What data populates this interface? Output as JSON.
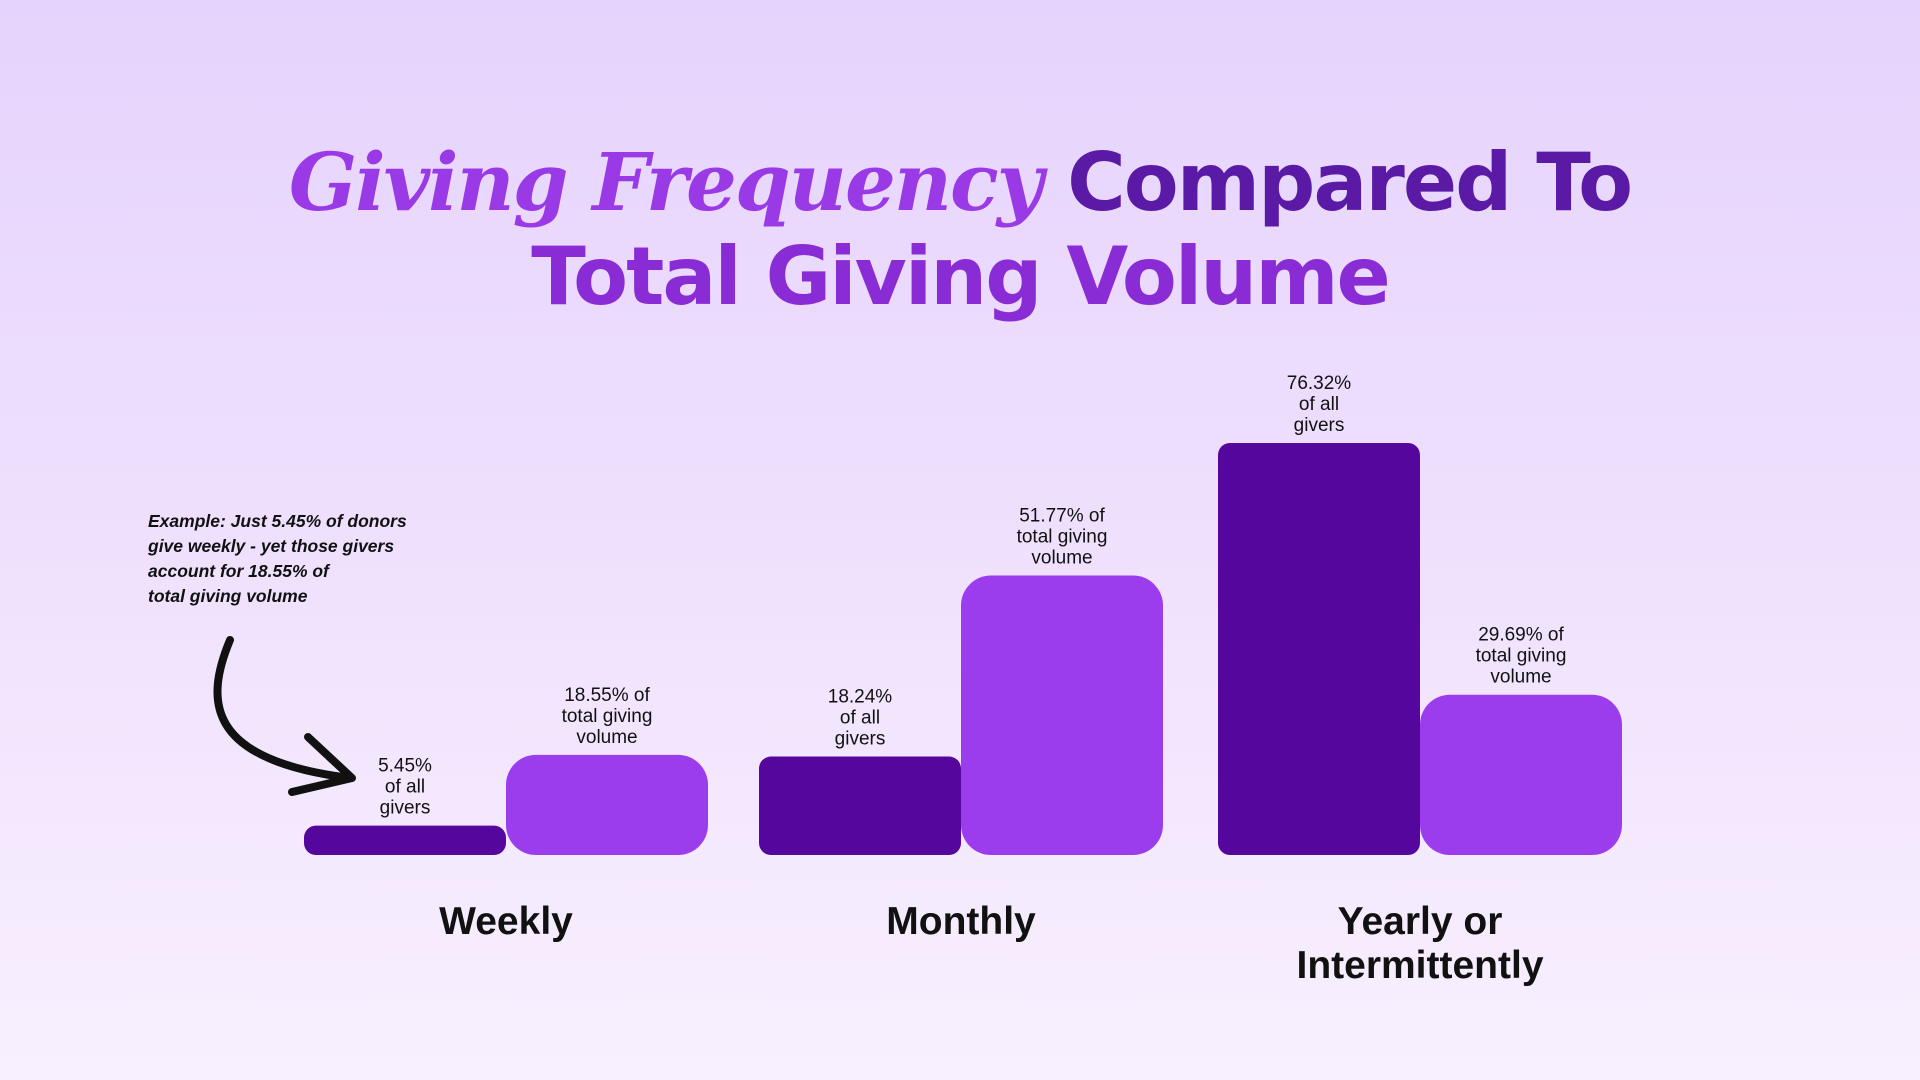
{
  "title": {
    "line1_italic": "Giving Frequency",
    "line1_rest": "Compared To",
    "line2": "Total Giving Volume"
  },
  "annotation": {
    "lines": [
      "Example: Just 5.45% of donors",
      "give weekly - yet those givers",
      "account for 18.55% of",
      "total giving volume"
    ]
  },
  "colors": {
    "givers_bar": "#55069c",
    "volume_bar": "#9b3ded",
    "title_italic": "#9a3ae6",
    "title_dark": "#5a1aa6",
    "title_line2": "#8a2cd6",
    "text": "#111111"
  },
  "chart_data": {
    "type": "bar",
    "title": "Giving Frequency Compared To Total Giving Volume",
    "xlabel": "",
    "ylabel": "",
    "ylim": [
      0,
      100
    ],
    "grid": false,
    "categories": [
      {
        "id": "weekly",
        "label_lines": [
          "Weekly"
        ]
      },
      {
        "id": "monthly",
        "label_lines": [
          "Monthly"
        ]
      },
      {
        "id": "yearly",
        "label_lines": [
          "Yearly or",
          "Intermittently"
        ]
      }
    ],
    "series": [
      {
        "name": "givers",
        "values": [
          5.45,
          18.24,
          76.32
        ],
        "labels": [
          [
            "5.45%",
            "of all",
            "givers"
          ],
          [
            "18.24%",
            "of all",
            "givers"
          ],
          [
            "76.32%",
            "of all",
            "givers"
          ]
        ]
      },
      {
        "name": "total giving volume",
        "values": [
          18.55,
          51.77,
          29.69
        ],
        "labels": [
          [
            "18.55% of",
            "total giving",
            "volume"
          ],
          [
            "51.77% of",
            "total giving",
            "volume"
          ],
          [
            "29.69% of",
            "total giving",
            "volume"
          ]
        ]
      }
    ]
  }
}
